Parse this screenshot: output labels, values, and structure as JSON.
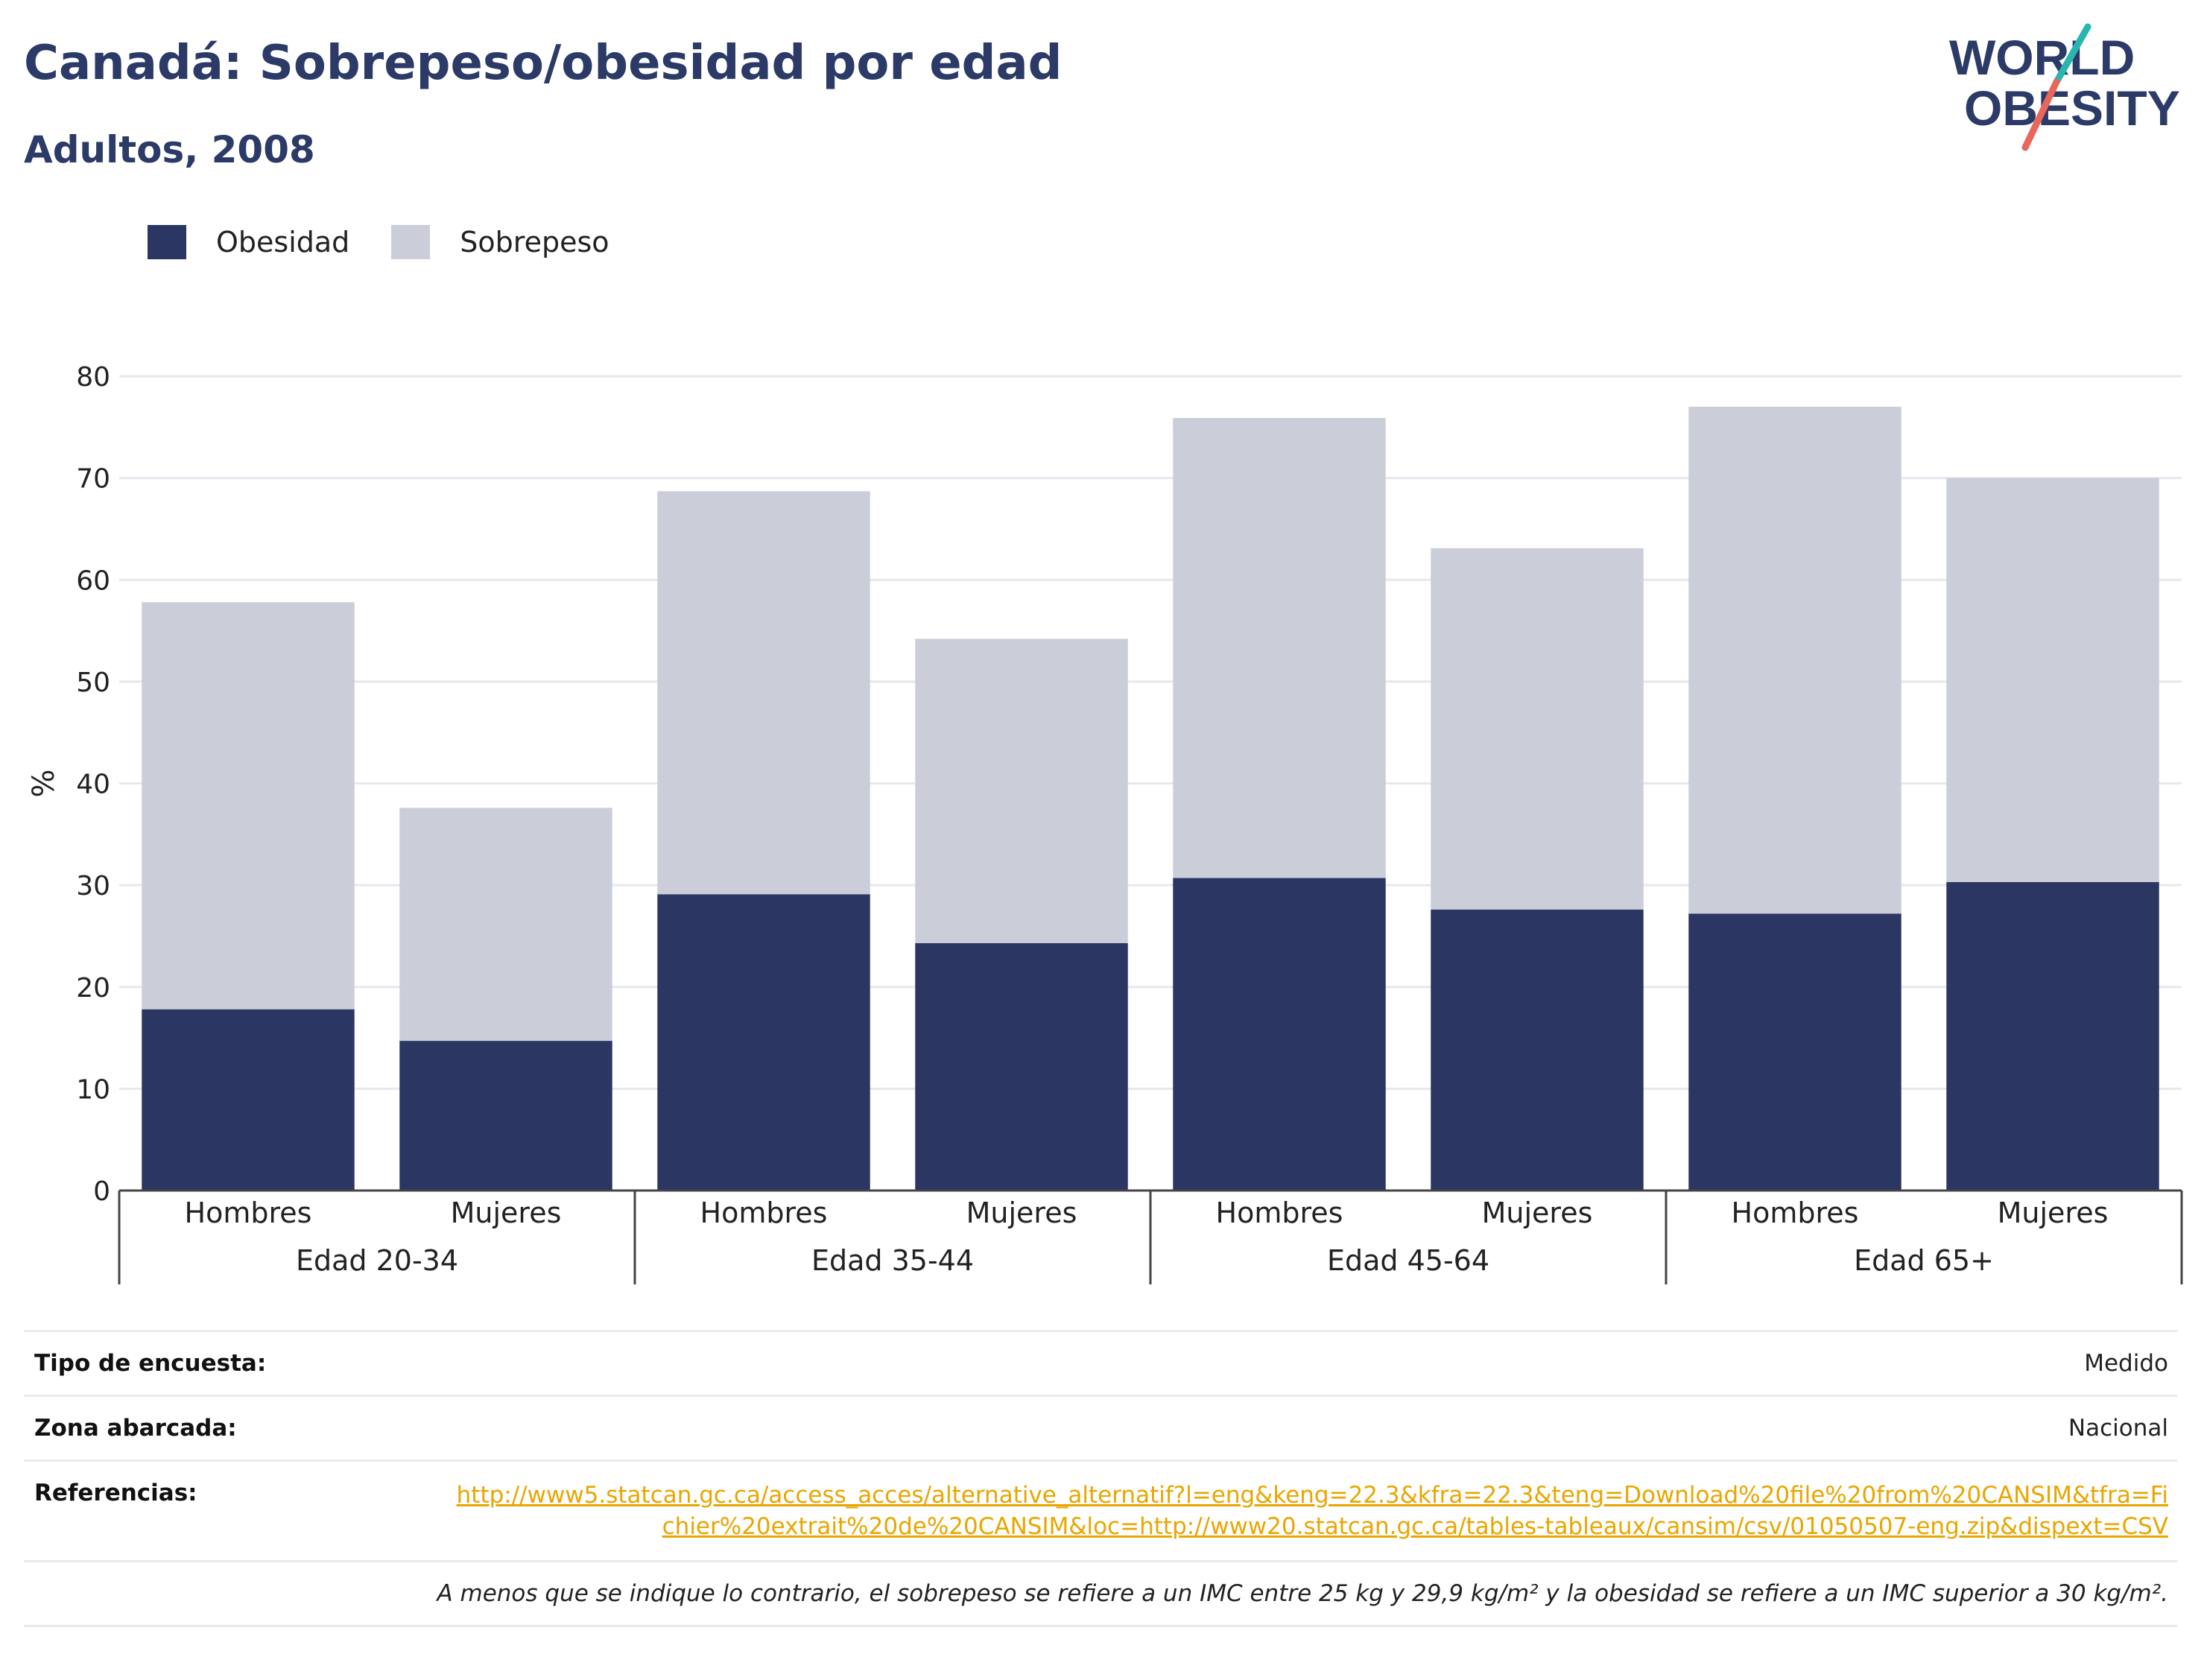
{
  "header": {
    "title": "Canadá: Sobrepeso/obesidad por edad",
    "subtitle": "Adultos, 2008"
  },
  "logo": {
    "line1": "WORLD",
    "line2": "OBESITY",
    "icon": "world-obesity-logo"
  },
  "colors": {
    "obesidad": "#2b3663",
    "sobrepeso": "#cbcdd9",
    "accent_teal": "#2bb5b0",
    "accent_coral": "#e8665a",
    "link": "#e8a600"
  },
  "legend": [
    {
      "label": "Obesidad",
      "color": "#2b3663"
    },
    {
      "label": "Sobrepeso",
      "color": "#cbcdd9"
    }
  ],
  "chart_data": {
    "type": "bar",
    "stacked": true,
    "ylabel": "%",
    "ylim": [
      0,
      80
    ],
    "yticks": [
      0,
      10,
      20,
      30,
      40,
      50,
      60,
      70,
      80
    ],
    "grid": true,
    "legend_position": "top-left",
    "groups": [
      "Edad 20-34",
      "Edad 35-44",
      "Edad 45-64",
      "Edad 65+"
    ],
    "categories": [
      "Hombres",
      "Mujeres",
      "Hombres",
      "Mujeres",
      "Hombres",
      "Mujeres",
      "Hombres",
      "Mujeres"
    ],
    "series": [
      {
        "name": "Obesidad",
        "values": [
          17.8,
          14.7,
          29.1,
          24.3,
          30.7,
          27.6,
          27.2,
          30.3
        ]
      },
      {
        "name": "Sobrepeso",
        "values": [
          40.0,
          22.9,
          39.6,
          29.9,
          45.2,
          35.5,
          49.8,
          39.7
        ]
      }
    ]
  },
  "info": {
    "survey_label": "Tipo de encuesta:",
    "survey_value": "Medido",
    "area_label": "Zona abarcada:",
    "area_value": "Nacional",
    "refs_label": "Referencias:",
    "refs_value": "http://www5.statcan.gc.ca/access_acces/alternative_alternatif?l=eng&keng=22.3&kfra=22.3&teng=Download%20file%20from%20CANSIM&tfra=Fichier%20extrait%20de%20CANSIM&loc=http://www20.statcan.gc.ca/tables-tableaux/cansim/csv/01050507-eng.zip&dispext=CSV",
    "note": "A menos que se indique lo contrario, el sobrepeso se refiere a un IMC entre 25 kg y 29,9 kg/m² y la obesidad se refiere a un IMC superior a 30 kg/m²."
  }
}
